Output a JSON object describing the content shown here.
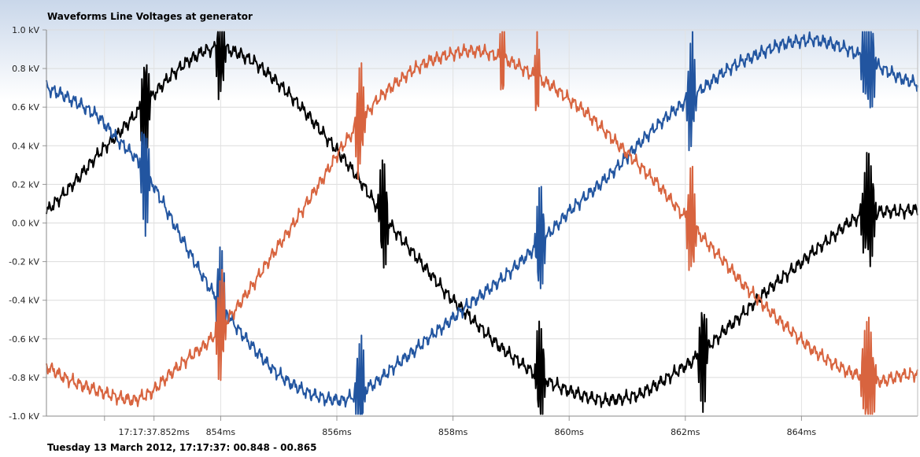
{
  "chart_data": {
    "type": "line",
    "title": "Waveforms Line Voltages at generator",
    "footer": "Tuesday 13 March 2012, 17:17:37: 00.848 - 00.865",
    "xlabel": "",
    "ylabel": "",
    "x_unit": "ms",
    "xlim": [
      851.0,
      866.0
    ],
    "ylim": [
      -1.0,
      1.0
    ],
    "y_ticks": [
      {
        "v": 1.0,
        "label": "1.0 kV"
      },
      {
        "v": 0.8,
        "label": "0.8 kV"
      },
      {
        "v": 0.6,
        "label": "0.6 kV"
      },
      {
        "v": 0.4,
        "label": "0.4 kV"
      },
      {
        "v": 0.2,
        "label": "0.2 kV"
      },
      {
        "v": 0.0,
        "label": "0.0 kV"
      },
      {
        "v": -0.2,
        "label": "-0.2 kV"
      },
      {
        "v": -0.4,
        "label": "-0.4 kV"
      },
      {
        "v": -0.6,
        "label": "-0.6 kV"
      },
      {
        "v": -0.8,
        "label": "-0.8 kV"
      },
      {
        "v": -1.0,
        "label": "-1.0 kV"
      }
    ],
    "x_ticks": [
      {
        "v": 852,
        "label": ""
      },
      {
        "v": 852.852,
        "label": "17:17:37.852ms"
      },
      {
        "v": 854,
        "label": "854ms"
      },
      {
        "v": 856,
        "label": "856ms"
      },
      {
        "v": 858,
        "label": "858ms"
      },
      {
        "v": 860,
        "label": "860ms"
      },
      {
        "v": 862,
        "label": "862ms"
      },
      {
        "v": 864,
        "label": "864ms"
      }
    ],
    "grid": true,
    "legend": "none",
    "series": [
      {
        "color": "#000000",
        "x": [
          851.0,
          851.3,
          851.6,
          851.9,
          852.2,
          852.5,
          852.8,
          853.1,
          853.4,
          853.7,
          854.0,
          854.3,
          854.6,
          854.9,
          855.2,
          855.5,
          855.8,
          856.1,
          856.4,
          856.7,
          857.0,
          857.3,
          857.6,
          857.9,
          858.2,
          858.5,
          858.8,
          859.1,
          859.4,
          859.7,
          860.0,
          860.3,
          860.6,
          860.9,
          861.2,
          861.5,
          861.8,
          862.1,
          862.4,
          862.7,
          863.0,
          863.3,
          863.6,
          863.9,
          864.2,
          864.5,
          864.8,
          865.1,
          865.4,
          865.7,
          866.0
        ],
        "y": [
          0.06,
          0.15,
          0.25,
          0.36,
          0.45,
          0.55,
          0.65,
          0.75,
          0.83,
          0.89,
          0.91,
          0.88,
          0.83,
          0.75,
          0.66,
          0.56,
          0.45,
          0.34,
          0.22,
          0.08,
          -0.04,
          -0.15,
          -0.26,
          -0.37,
          -0.46,
          -0.55,
          -0.64,
          -0.71,
          -0.78,
          -0.83,
          -0.87,
          -0.9,
          -0.92,
          -0.91,
          -0.89,
          -0.84,
          -0.78,
          -0.72,
          -0.64,
          -0.55,
          -0.47,
          -0.38,
          -0.3,
          -0.23,
          -0.15,
          -0.08,
          0.0,
          0.05,
          0.06,
          0.06,
          0.07
        ],
        "spikes": [
          [
            852.6,
            852.8
          ],
          [
            853.9,
            854.1
          ],
          [
            856.7,
            856.9
          ],
          [
            859.4,
            859.6
          ],
          [
            862.2,
            862.4
          ],
          [
            865.0,
            865.3
          ]
        ]
      },
      {
        "color": "#2255a0",
        "x": [
          851.0,
          851.3,
          851.6,
          851.9,
          852.2,
          852.5,
          852.8,
          853.1,
          853.4,
          853.7,
          854.0,
          854.3,
          854.6,
          854.9,
          855.2,
          855.5,
          855.8,
          856.1,
          856.4,
          856.7,
          857.0,
          857.3,
          857.6,
          857.9,
          858.2,
          858.5,
          858.8,
          859.1,
          859.4,
          859.7,
          860.0,
          860.3,
          860.6,
          860.9,
          861.2,
          861.5,
          861.8,
          862.1,
          862.4,
          862.7,
          863.0,
          863.3,
          863.6,
          863.9,
          864.2,
          864.5,
          864.8,
          865.1,
          865.4,
          865.7,
          866.0
        ],
        "y": [
          0.7,
          0.66,
          0.61,
          0.55,
          0.44,
          0.35,
          0.22,
          0.05,
          -0.12,
          -0.28,
          -0.43,
          -0.55,
          -0.66,
          -0.76,
          -0.83,
          -0.88,
          -0.91,
          -0.92,
          -0.88,
          -0.82,
          -0.74,
          -0.67,
          -0.59,
          -0.52,
          -0.44,
          -0.37,
          -0.3,
          -0.22,
          -0.13,
          -0.04,
          0.06,
          0.14,
          0.22,
          0.31,
          0.41,
          0.5,
          0.58,
          0.65,
          0.72,
          0.79,
          0.84,
          0.88,
          0.92,
          0.94,
          0.95,
          0.93,
          0.9,
          0.85,
          0.8,
          0.75,
          0.72
        ],
        "spikes": [
          [
            852.6,
            852.8
          ],
          [
            853.9,
            854.1
          ],
          [
            856.3,
            856.5
          ],
          [
            859.4,
            859.6
          ],
          [
            862.0,
            862.2
          ],
          [
            865.0,
            865.3
          ]
        ]
      },
      {
        "color": "#d8643f",
        "x": [
          851.0,
          851.3,
          851.6,
          851.9,
          852.2,
          852.5,
          852.8,
          853.1,
          853.4,
          853.7,
          854.0,
          854.3,
          854.6,
          854.9,
          855.2,
          855.5,
          855.8,
          856.1,
          856.4,
          856.7,
          857.0,
          857.3,
          857.6,
          857.9,
          858.2,
          858.5,
          858.8,
          859.1,
          859.4,
          859.7,
          860.0,
          860.3,
          860.6,
          860.9,
          861.2,
          861.5,
          861.8,
          862.1,
          862.4,
          862.7,
          863.0,
          863.3,
          863.6,
          863.9,
          864.2,
          864.5,
          864.8,
          865.1,
          865.4,
          865.7,
          866.0
        ],
        "y": [
          -0.74,
          -0.8,
          -0.84,
          -0.87,
          -0.9,
          -0.92,
          -0.88,
          -0.79,
          -0.71,
          -0.64,
          -0.55,
          -0.43,
          -0.3,
          -0.16,
          -0.03,
          0.11,
          0.25,
          0.4,
          0.52,
          0.64,
          0.72,
          0.79,
          0.84,
          0.87,
          0.89,
          0.89,
          0.86,
          0.82,
          0.76,
          0.71,
          0.64,
          0.57,
          0.48,
          0.39,
          0.3,
          0.21,
          0.1,
          -0.01,
          -0.11,
          -0.21,
          -0.32,
          -0.41,
          -0.5,
          -0.58,
          -0.66,
          -0.72,
          -0.77,
          -0.8,
          -0.82,
          -0.79,
          -0.78
        ],
        "spikes": [
          [
            853.9,
            854.1
          ],
          [
            856.3,
            856.5
          ],
          [
            858.8,
            858.9
          ],
          [
            859.4,
            859.5
          ],
          [
            862.0,
            862.2
          ],
          [
            865.0,
            865.3
          ]
        ]
      }
    ]
  }
}
